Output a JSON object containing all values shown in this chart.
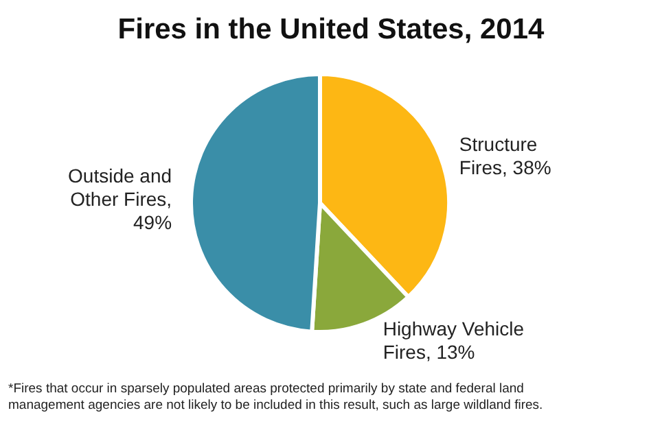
{
  "chart_data": {
    "type": "pie",
    "title": "Fires in the United States, 2014",
    "categories": [
      "Structure Fires, 38%",
      "Highway Vehicle Fires, 13%",
      "Outside and Other Fires, 49%"
    ],
    "values": [
      38,
      13,
      49
    ],
    "colors": [
      "#fdb714",
      "#8aa83b",
      "#3a8ea8"
    ],
    "annotations": [
      "*Fires that occur in sparsely populated areas protected primarily by state and federal land management agencies are not likely to be included in this result, such as large wildland fires."
    ]
  }
}
